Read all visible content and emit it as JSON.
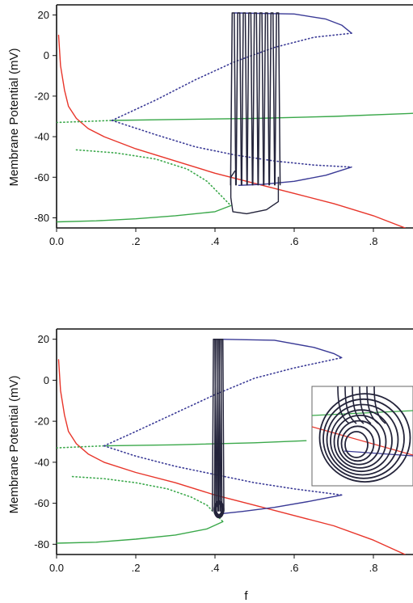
{
  "chart_data": [
    {
      "type": "line",
      "panel": "top",
      "ylabel": "Membrane Potential (mV)",
      "xlabel": "",
      "xlim": [
        0.0,
        0.9
      ],
      "ylim": [
        -85,
        25
      ],
      "x_ticks": [
        0.0,
        0.2,
        0.4,
        0.6,
        0.8
      ],
      "x_tick_labels": [
        "0.0",
        ".2",
        ".4",
        ".6",
        ".8"
      ],
      "y_ticks": [
        20,
        0,
        -20,
        -40,
        -60,
        -80
      ],
      "y_tick_labels": [
        "20",
        "0",
        "-20",
        "-40",
        "-60",
        "-80"
      ],
      "grid": false,
      "inset": false,
      "colors": {
        "f_nullcline": "#e8352a",
        "stable_branch": "#3aa84a",
        "unstable_branch": "#3aa84a",
        "periodic_stable": "#3a3a96",
        "periodic_unstable": "#3a3a96",
        "trajectory": "#23233a"
      },
      "series": [
        {
          "role": "f_nullcline",
          "style": "solid",
          "points": [
            [
              0.005,
              10
            ],
            [
              0.01,
              -5
            ],
            [
              0.02,
              -17
            ],
            [
              0.03,
              -25
            ],
            [
              0.05,
              -31
            ],
            [
              0.08,
              -36
            ],
            [
              0.12,
              -40
            ],
            [
              0.2,
              -46
            ],
            [
              0.3,
              -52
            ],
            [
              0.4,
              -58
            ],
            [
              0.5,
              -63
            ],
            [
              0.6,
              -68
            ],
            [
              0.7,
              -73
            ],
            [
              0.8,
              -79
            ],
            [
              0.88,
              -85
            ]
          ]
        },
        {
          "role": "stable_upper_branch",
          "style": "solid",
          "points": [
            [
              0.14,
              -32
            ],
            [
              0.3,
              -31.5
            ],
            [
              0.5,
              -31
            ],
            [
              0.7,
              -30
            ],
            [
              0.9,
              -28.5
            ]
          ]
        },
        {
          "role": "unstable_middle_branch",
          "style": "dotted",
          "points": [
            [
              0.0,
              -33
            ],
            [
              0.07,
              -32.5
            ],
            [
              0.14,
              -32
            ]
          ]
        },
        {
          "role": "unstable_lower_branch",
          "style": "dotted",
          "points": [
            [
              0.05,
              -46.5
            ],
            [
              0.15,
              -48
            ],
            [
              0.25,
              -51
            ],
            [
              0.33,
              -56
            ],
            [
              0.38,
              -62
            ],
            [
              0.41,
              -68
            ],
            [
              0.44,
              -74
            ]
          ]
        },
        {
          "role": "stable_lower_branch",
          "style": "solid",
          "points": [
            [
              0.0,
              -82
            ],
            [
              0.1,
              -81.5
            ],
            [
              0.2,
              -80.5
            ],
            [
              0.3,
              -79
            ],
            [
              0.4,
              -77
            ],
            [
              0.44,
              -74
            ]
          ]
        },
        {
          "role": "periodic_max_stable",
          "style": "solid",
          "points": [
            [
              0.45,
              21
            ],
            [
              0.6,
              20.5
            ],
            [
              0.68,
              18
            ],
            [
              0.72,
              15
            ],
            [
              0.745,
              11
            ]
          ]
        },
        {
          "role": "periodic_max_unstable",
          "style": "dotted",
          "points": [
            [
              0.14,
              -32
            ],
            [
              0.25,
              -22
            ],
            [
              0.35,
              -12
            ],
            [
              0.45,
              -3
            ],
            [
              0.55,
              4
            ],
            [
              0.65,
              9
            ],
            [
              0.745,
              11
            ]
          ]
        },
        {
          "role": "periodic_min_unstable",
          "style": "dotted",
          "points": [
            [
              0.14,
              -32
            ],
            [
              0.25,
              -39
            ],
            [
              0.35,
              -45
            ],
            [
              0.45,
              -49
            ],
            [
              0.55,
              -52
            ],
            [
              0.65,
              -54
            ],
            [
              0.745,
              -55
            ]
          ]
        },
        {
          "role": "periodic_min_stable",
          "style": "solid",
          "points": [
            [
              0.745,
              -55
            ],
            [
              0.68,
              -59
            ],
            [
              0.6,
              -62
            ],
            [
              0.52,
              -63.5
            ],
            [
              0.46,
              -64
            ]
          ]
        },
        {
          "role": "trajectory_bursts",
          "style": "solid",
          "spike_x": [
            0.446,
            0.46,
            0.474,
            0.488,
            0.502,
            0.516,
            0.53,
            0.544,
            0.558
          ],
          "spike_min": -64,
          "spike_max": 21
        },
        {
          "role": "trajectory_return",
          "style": "solid",
          "points": [
            [
              0.56,
              -60
            ],
            [
              0.56,
              -72
            ],
            [
              0.53,
              -76
            ],
            [
              0.48,
              -78
            ],
            [
              0.445,
              -77
            ],
            [
              0.44,
              -70
            ],
            [
              0.44,
              -60
            ],
            [
              0.45,
              -57
            ]
          ]
        }
      ]
    },
    {
      "type": "line",
      "panel": "bottom",
      "ylabel": "Membrane Potential (mV)",
      "xlabel": "f",
      "xlim": [
        0.0,
        0.9
      ],
      "ylim": [
        -85,
        25
      ],
      "x_ticks": [
        0.0,
        0.2,
        0.4,
        0.6,
        0.8
      ],
      "x_tick_labels": [
        "0.0",
        ".2",
        ".4",
        ".6",
        ".8"
      ],
      "y_ticks": [
        20,
        0,
        -20,
        -40,
        -60,
        -80
      ],
      "y_tick_labels": [
        "20",
        "0",
        "-20",
        "-40",
        "-60",
        "-80"
      ],
      "grid": false,
      "inset": true,
      "colors": {
        "f_nullcline": "#e8352a",
        "stable_branch": "#3aa84a",
        "unstable_branch": "#3aa84a",
        "periodic_stable": "#3a3a96",
        "periodic_unstable": "#3a3a96",
        "trajectory": "#23233a"
      },
      "series": [
        {
          "role": "f_nullcline",
          "style": "solid",
          "points": [
            [
              0.005,
              10
            ],
            [
              0.01,
              -5
            ],
            [
              0.02,
              -17
            ],
            [
              0.03,
              -25
            ],
            [
              0.05,
              -31
            ],
            [
              0.08,
              -36
            ],
            [
              0.12,
              -40
            ],
            [
              0.2,
              -45
            ],
            [
              0.3,
              -50
            ],
            [
              0.4,
              -56
            ],
            [
              0.5,
              -61
            ],
            [
              0.6,
              -66
            ],
            [
              0.7,
              -71
            ],
            [
              0.8,
              -78
            ],
            [
              0.88,
              -85
            ]
          ]
        },
        {
          "role": "stable_upper_branch",
          "style": "solid",
          "points": [
            [
              0.12,
              -32
            ],
            [
              0.3,
              -31.5
            ],
            [
              0.5,
              -30.5
            ],
            [
              0.63,
              -29.5
            ]
          ]
        },
        {
          "role": "unstable_middle_branch",
          "style": "dotted",
          "points": [
            [
              0.0,
              -33
            ],
            [
              0.06,
              -32.5
            ],
            [
              0.12,
              -32
            ]
          ]
        },
        {
          "role": "unstable_lower_branch",
          "style": "dotted",
          "points": [
            [
              0.04,
              -47
            ],
            [
              0.12,
              -48
            ],
            [
              0.2,
              -50
            ],
            [
              0.28,
              -53
            ],
            [
              0.34,
              -57
            ],
            [
              0.38,
              -61
            ],
            [
              0.4,
              -65
            ],
            [
              0.42,
              -69
            ]
          ]
        },
        {
          "role": "stable_lower_branch",
          "style": "solid",
          "points": [
            [
              0.0,
              -79.5
            ],
            [
              0.1,
              -79
            ],
            [
              0.2,
              -77.5
            ],
            [
              0.3,
              -75.5
            ],
            [
              0.38,
              -72.5
            ],
            [
              0.42,
              -69
            ]
          ]
        },
        {
          "role": "periodic_max_stable",
          "style": "solid",
          "points": [
            [
              0.41,
              20
            ],
            [
              0.55,
              19.5
            ],
            [
              0.65,
              16
            ],
            [
              0.7,
              13
            ],
            [
              0.72,
              11
            ]
          ]
        },
        {
          "role": "periodic_max_unstable",
          "style": "dotted",
          "points": [
            [
              0.12,
              -32
            ],
            [
              0.2,
              -25
            ],
            [
              0.3,
              -16
            ],
            [
              0.4,
              -7
            ],
            [
              0.5,
              1
            ],
            [
              0.6,
              6
            ],
            [
              0.72,
              11
            ]
          ]
        },
        {
          "role": "periodic_min_unstable",
          "style": "dotted",
          "points": [
            [
              0.12,
              -32
            ],
            [
              0.2,
              -37
            ],
            [
              0.3,
              -42
            ],
            [
              0.4,
              -46
            ],
            [
              0.5,
              -50
            ],
            [
              0.6,
              -53
            ],
            [
              0.72,
              -56
            ]
          ]
        },
        {
          "role": "periodic_min_stable",
          "style": "solid",
          "points": [
            [
              0.72,
              -56
            ],
            [
              0.64,
              -59
            ],
            [
              0.55,
              -62
            ],
            [
              0.47,
              -64
            ],
            [
              0.42,
              -65
            ]
          ]
        },
        {
          "role": "trajectory_bursts",
          "style": "solid",
          "spike_x": [
            0.398,
            0.403,
            0.408,
            0.413,
            0.418
          ],
          "spike_min": -64,
          "spike_max": 20,
          "loop_center": [
            0.41,
            -63
          ],
          "loop_radius_f": 0.012,
          "loop_radius_v": 4
        }
      ]
    }
  ]
}
